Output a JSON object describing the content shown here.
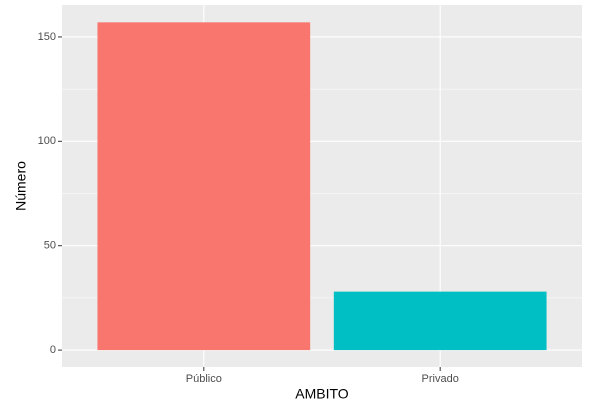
{
  "chart_data": {
    "type": "bar",
    "x_label": "AMBITO",
    "y_label": "Número",
    "categories": [
      "Público",
      "Privado"
    ],
    "values": [
      157,
      28
    ],
    "colors": [
      "#F8766D",
      "#00BFC4"
    ],
    "ylim": [
      -8.1,
      165.3
    ],
    "yticks": [
      0,
      50,
      100,
      150
    ],
    "minor_yticks": [
      25,
      75,
      125
    ],
    "grid": true
  }
}
